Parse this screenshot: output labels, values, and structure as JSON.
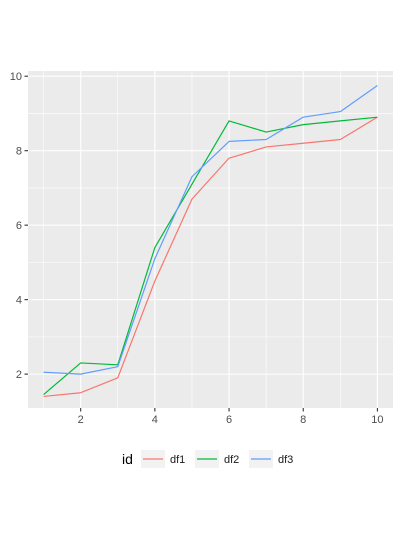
{
  "chart_data": {
    "type": "line",
    "title": "",
    "xlabel": "",
    "ylabel": "",
    "xlim": [
      0.58,
      10.42
    ],
    "ylim": [
      1.09,
      10.14
    ],
    "x": [
      1,
      2,
      3,
      4,
      5,
      6,
      7,
      8,
      9,
      10
    ],
    "x_ticks": [
      2,
      4,
      6,
      8,
      10
    ],
    "y_ticks": [
      2,
      4,
      6,
      8,
      10
    ],
    "grid": true,
    "background": "#ebebeb",
    "legend": {
      "title": "id",
      "position": "bottom"
    },
    "series": [
      {
        "name": "df1",
        "color": "#F8766D",
        "values": [
          1.4,
          1.5,
          1.9,
          4.5,
          6.7,
          7.8,
          8.1,
          8.2,
          8.3,
          8.9
        ]
      },
      {
        "name": "df2",
        "color": "#00BA38",
        "values": [
          1.45,
          2.3,
          2.25,
          5.4,
          7.1,
          8.8,
          8.5,
          8.7,
          8.8,
          8.9
        ]
      },
      {
        "name": "df3",
        "color": "#619CFF",
        "values": [
          2.05,
          2.0,
          2.2,
          5.1,
          7.3,
          8.25,
          8.3,
          8.9,
          9.05,
          9.75
        ]
      }
    ]
  }
}
